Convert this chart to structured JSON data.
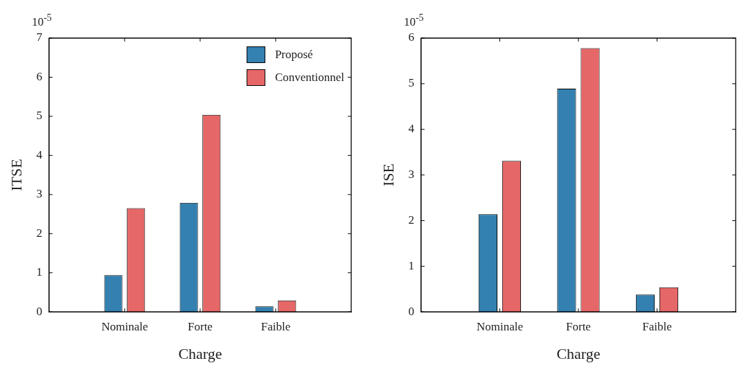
{
  "chart_data": [
    {
      "type": "bar",
      "xlabel": "Charge",
      "ylabel": "ITSE",
      "annotations": [
        "10$^{-5}$"
      ],
      "categories": [
        "Nominale",
        "Forte",
        "Faible"
      ],
      "series": [
        {
          "name": "Proposé",
          "color": "#3380b1",
          "values": [
            0.94,
            2.79,
            0.14
          ]
        },
        {
          "name": "Conventionnel",
          "color": "#e66767",
          "values": [
            2.65,
            5.04,
            0.29
          ]
        }
      ],
      "ylim": [
        0,
        7
      ],
      "yticks": [
        0,
        1,
        2,
        3,
        4,
        5,
        6,
        7
      ],
      "legend": "top right"
    },
    {
      "type": "bar",
      "xlabel": "Charge",
      "ylabel": "ISE",
      "annotations": [
        "10$^{-5}$"
      ],
      "categories": [
        "Nominale",
        "Forte",
        "Faible"
      ],
      "series": [
        {
          "color": "#3380b1",
          "values": [
            2.14,
            4.89,
            0.38
          ]
        },
        {
          "color": "#e66767",
          "values": [
            3.31,
            5.78,
            0.54
          ]
        }
      ],
      "ylim": [
        0,
        6
      ],
      "yticks": [
        0,
        1,
        2,
        3,
        4,
        5,
        6
      ]
    }
  ]
}
